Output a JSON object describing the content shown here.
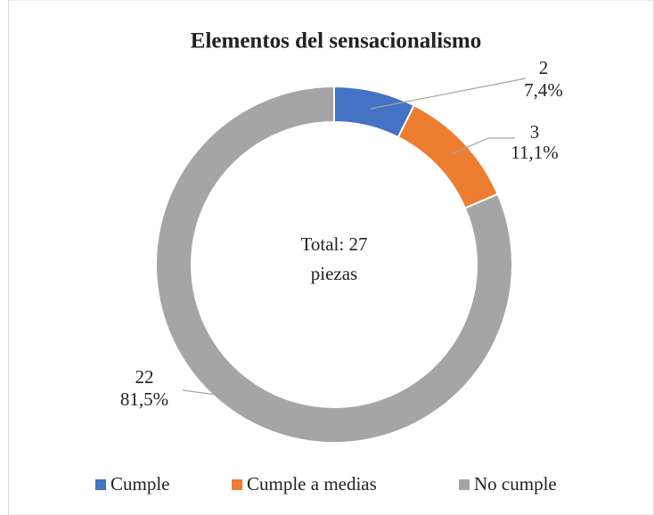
{
  "chart_data": {
    "type": "donut",
    "title": "Elementos del sensacionalismo",
    "categories": [
      "Cumple",
      "Cumple a medias",
      "No cumple"
    ],
    "values": [
      2,
      3,
      22
    ],
    "percent_labels": [
      "7,4%",
      "11,1%",
      "81,5%"
    ],
    "colors": [
      "#4472c4",
      "#ed7d31",
      "#a5a5a5"
    ],
    "center_text": [
      "Total: 27",
      "piezas"
    ],
    "legend": "bottom"
  }
}
